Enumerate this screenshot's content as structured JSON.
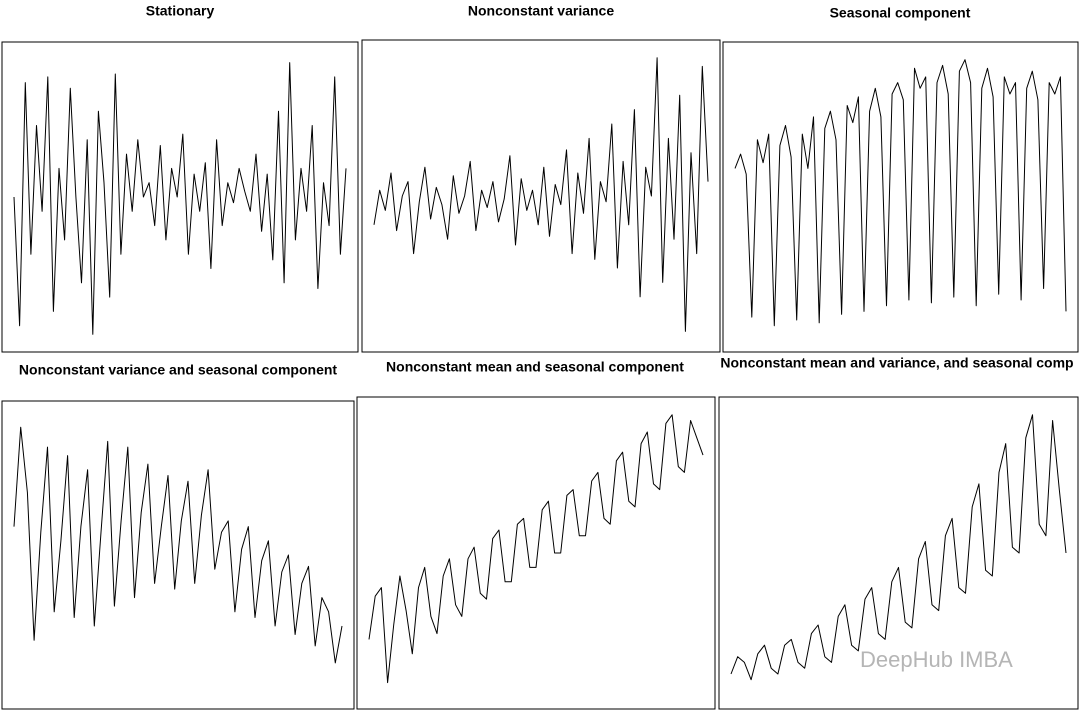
{
  "chart_data": [
    {
      "type": "line",
      "title": "Stationary",
      "color": "#000000",
      "ylim": [
        0,
        100
      ],
      "values": [
        50,
        5,
        90,
        30,
        75,
        45,
        92,
        10,
        60,
        35,
        88,
        50,
        20,
        70,
        2,
        80,
        55,
        15,
        93,
        30,
        65,
        45,
        70,
        50,
        55,
        40,
        68,
        35,
        60,
        50,
        72,
        30,
        58,
        45,
        62,
        25,
        70,
        40,
        55,
        48,
        60,
        52,
        45,
        65,
        38,
        58,
        28,
        80,
        20,
        97,
        35,
        60,
        45,
        75,
        18,
        55,
        40,
        92,
        30,
        60
      ]
    },
    {
      "type": "line",
      "title": "Nonconstant variance",
      "color": "#000000",
      "ylim": [
        0,
        100
      ],
      "values": [
        40,
        52,
        45,
        58,
        38,
        50,
        55,
        30,
        48,
        60,
        42,
        53,
        47,
        35,
        57,
        44,
        50,
        62,
        38,
        52,
        46,
        55,
        41,
        49,
        64,
        33,
        56,
        45,
        52,
        40,
        60,
        36,
        54,
        47,
        66,
        30,
        58,
        44,
        70,
        28,
        55,
        48,
        75,
        25,
        62,
        40,
        80,
        15,
        60,
        50,
        98,
        20,
        70,
        35,
        85,
        3,
        65,
        30,
        95,
        55
      ]
    },
    {
      "type": "line",
      "title": "Seasonal component",
      "color": "#000000",
      "ylim": [
        0,
        100
      ],
      "values": [
        60,
        65,
        58,
        8,
        70,
        62,
        72,
        5,
        68,
        75,
        64,
        7,
        72,
        60,
        78,
        6,
        74,
        80,
        70,
        9,
        82,
        76,
        85,
        10,
        80,
        88,
        78,
        12,
        86,
        90,
        84,
        14,
        95,
        88,
        92,
        13,
        90,
        96,
        86,
        15,
        94,
        98,
        90,
        12,
        88,
        95,
        85,
        16,
        92,
        86,
        90,
        14,
        88,
        94,
        84,
        18,
        90,
        86,
        92,
        10
      ]
    },
    {
      "type": "line",
      "title": "Nonconstant variance and seasonal component",
      "color": "#000000",
      "ylim": [
        0,
        100
      ],
      "values": [
        60,
        95,
        72,
        20,
        58,
        88,
        30,
        55,
        85,
        28,
        60,
        80,
        25,
        58,
        90,
        32,
        62,
        88,
        35,
        65,
        82,
        40,
        60,
        78,
        38,
        62,
        76,
        40,
        64,
        80,
        45,
        58,
        62,
        30,
        52,
        60,
        28,
        48,
        55,
        25,
        44,
        50,
        22,
        40,
        46,
        18,
        35,
        30,
        12,
        25
      ]
    },
    {
      "type": "line",
      "title": "Nonconstant mean and seasonal component",
      "color": "#000000",
      "ylim": [
        0,
        100
      ],
      "values": [
        20,
        35,
        38,
        5,
        25,
        42,
        30,
        15,
        38,
        45,
        28,
        22,
        42,
        48,
        32,
        28,
        48,
        52,
        36,
        34,
        55,
        58,
        40,
        40,
        60,
        62,
        45,
        45,
        65,
        68,
        50,
        50,
        70,
        72,
        56,
        56,
        75,
        78,
        62,
        60,
        82,
        85,
        68,
        66,
        88,
        92,
        74,
        72,
        95,
        98,
        80,
        78,
        96,
        90,
        84
      ]
    },
    {
      "type": "line",
      "title": "Nonconstant mean and variance, and seasonal comp",
      "color": "#000000",
      "ylim": [
        0,
        100
      ],
      "values": [
        8,
        14,
        12,
        6,
        15,
        18,
        10,
        8,
        18,
        20,
        12,
        10,
        22,
        25,
        14,
        12,
        28,
        32,
        18,
        16,
        34,
        38,
        22,
        20,
        40,
        45,
        26,
        24,
        48,
        54,
        32,
        30,
        56,
        62,
        38,
        36,
        66,
        74,
        44,
        42,
        78,
        88,
        52,
        50,
        90,
        98,
        60,
        56,
        96,
        72,
        50
      ]
    }
  ],
  "watermark": "DeepHub IMBA"
}
